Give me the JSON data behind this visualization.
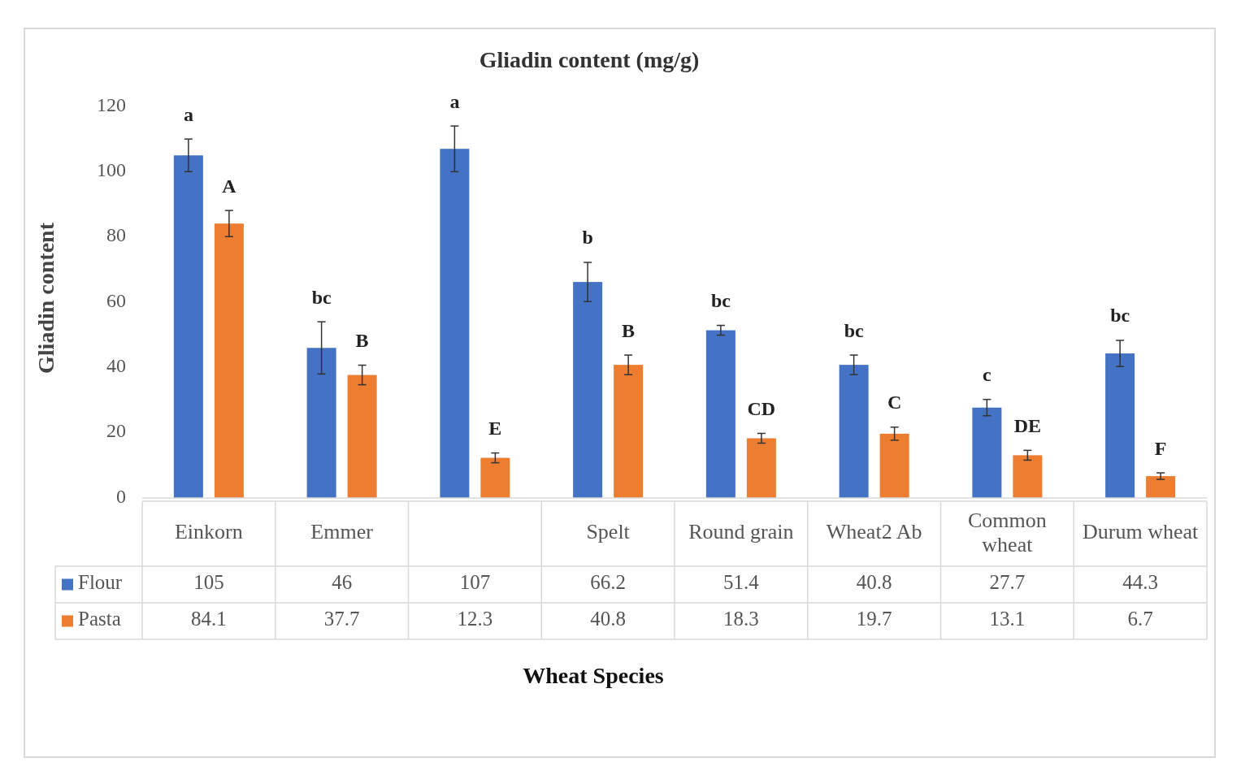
{
  "chart_data": {
    "type": "bar",
    "title": "Gliadin content (mg/g)",
    "xlabel": "Wheat Species",
    "ylabel": "Gliadin content",
    "categories": [
      "Einkorn",
      "Emmer",
      null,
      "Spelt",
      "Round grain",
      "Wheat2 Ab",
      "Common wheat",
      "Durum wheat"
    ],
    "series": [
      {
        "name": "Flour",
        "color": "#4472c4",
        "values": [
          105,
          46,
          107,
          66.2,
          51.4,
          40.8,
          27.7,
          44.3
        ],
        "errors": [
          5,
          8,
          7,
          6,
          1.5,
          3,
          2.5,
          4
        ]
      },
      {
        "name": "Pasta",
        "color": "#ed7d31",
        "values": [
          84.1,
          37.7,
          12.3,
          40.8,
          18.3,
          19.7,
          13.1,
          6.7
        ],
        "errors": [
          4,
          3,
          1.5,
          3,
          1.5,
          2,
          1.5,
          1
        ]
      }
    ],
    "ylim": [
      0,
      120
    ],
    "yticks": [
      0,
      20,
      40,
      60,
      80,
      100,
      120
    ],
    "data_labels": true,
    "legend": "bottom",
    "annotations": [
      "a",
      "A",
      "bc",
      "B",
      "a",
      "E",
      "b",
      "B",
      "bc",
      "CD",
      "bc",
      "C",
      "c",
      "DE",
      "bc",
      "F"
    ]
  }
}
